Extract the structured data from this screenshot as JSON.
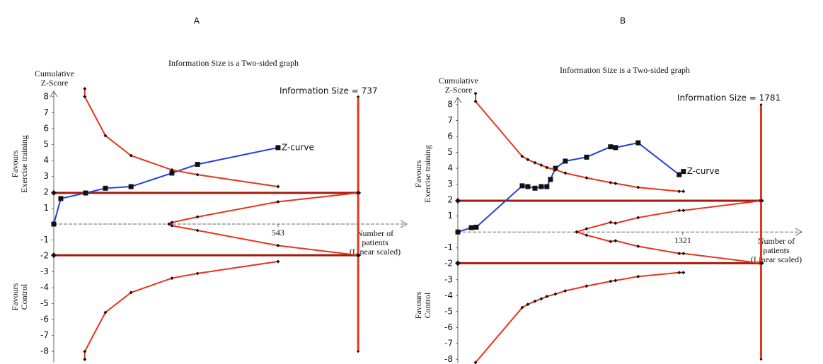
{
  "chart_data": [
    {
      "type": "line",
      "panel": "A",
      "title": "Information Size is a Two-sided graph",
      "y_label": [
        "Cumulative",
        "Z-Score"
      ],
      "x_label": [
        "Number of",
        "patients",
        "(Linear scaled)"
      ],
      "favours_upper": [
        "Favours",
        "Exercise training"
      ],
      "favours_lower": [
        "Favours",
        "Control"
      ],
      "information_size_label": "Information Size = 737",
      "information_size": 737,
      "information_size_ylim": [
        -8,
        8
      ],
      "boundary": [
        1.96,
        -1.96
      ],
      "boundary_color": "#a51b0b",
      "information_size_color": "#e8341c",
      "xlim": [
        0,
        855
      ],
      "ylim": [
        -8.7,
        8.7
      ],
      "xticks": [
        543
      ],
      "yticks": [
        -8,
        -7,
        -6,
        -5,
        -4,
        -3,
        -2,
        -1,
        1,
        2,
        3,
        4,
        5,
        6,
        7,
        8
      ],
      "series": [
        {
          "name": "Z-curve",
          "color": "#1f3fdf",
          "marker": "square",
          "x": [
            0,
            17,
            77,
            125,
            187,
            286,
            348,
            543
          ],
          "values": [
            0,
            1.6,
            1.95,
            2.25,
            2.35,
            3.2,
            3.75,
            4.8
          ]
        },
        {
          "color": "#e8341c",
          "marker": "diamond",
          "x": [
            75,
            75,
            125,
            187,
            286,
            348,
            543
          ],
          "values": [
            8.5,
            8.0,
            5.55,
            4.3,
            3.4,
            3.1,
            2.35
          ]
        },
        {
          "color": "#e8341c",
          "marker": "diamond",
          "x": [
            75,
            75,
            125,
            187,
            286,
            348,
            543
          ],
          "values": [
            -8.5,
            -8.0,
            -5.55,
            -4.3,
            -3.4,
            -3.1,
            -2.35
          ]
        },
        {
          "color": "#e8341c",
          "marker": "diamond",
          "x": [
            279,
            286,
            348,
            543,
            737
          ],
          "values": [
            0,
            0.1,
            0.45,
            1.4,
            1.96
          ]
        },
        {
          "color": "#e8341c",
          "marker": "diamond",
          "x": [
            279,
            286,
            348,
            543,
            737
          ],
          "values": [
            0,
            -0.1,
            -0.4,
            -1.35,
            -1.96
          ]
        }
      ]
    },
    {
      "type": "line",
      "panel": "B",
      "title": "Information Size is a Two-sided graph",
      "y_label": [
        "Cumulative",
        "Z-Score"
      ],
      "x_label": [
        "Number of",
        "patients",
        "(Linear scaled)"
      ],
      "favours_upper": [
        "Favours",
        "Exercise training"
      ],
      "favours_lower": [
        "Favours",
        "Control"
      ],
      "information_size_label": "Information Size = 1781",
      "information_size": 1781,
      "information_size_ylim": [
        -8,
        8
      ],
      "boundary": [
        1.96,
        -1.96
      ],
      "boundary_color": "#a51b0b",
      "information_size_color": "#e8341c",
      "xlim": [
        0,
        2020
      ],
      "ylim": [
        -8.25,
        8.8
      ],
      "xticks": [
        1321
      ],
      "yticks": [
        -8,
        -7,
        -6,
        -5,
        -4,
        -3,
        -2,
        -1,
        1,
        2,
        3,
        4,
        5,
        6,
        7,
        8
      ],
      "series": [
        {
          "name": "Z-curve",
          "color": "#1f3fdf",
          "marker": "square",
          "x": [
            0,
            79,
            108,
            378,
            411,
            453,
            490,
            523,
            544,
            573,
            631,
            756,
            897,
            926,
            1059,
            1300,
            1325
          ],
          "values": [
            0,
            0.27,
            0.3,
            2.9,
            2.85,
            2.75,
            2.85,
            2.85,
            3.3,
            4.0,
            4.45,
            4.7,
            5.35,
            5.3,
            5.6,
            3.6,
            3.8
          ]
        },
        {
          "color": "#e8341c",
          "marker": "diamond",
          "x": [
            104,
            104,
            378,
            411,
            453,
            490,
            523,
            573,
            631,
            756,
            897,
            926,
            1059,
            1300,
            1325
          ],
          "values": [
            8.7,
            8.2,
            4.75,
            4.55,
            4.35,
            4.2,
            4.05,
            3.9,
            3.7,
            3.4,
            3.1,
            3.05,
            2.8,
            2.55,
            2.55
          ]
        },
        {
          "color": "#e8341c",
          "marker": "diamond",
          "x": [
            104,
            104,
            378,
            411,
            453,
            490,
            523,
            573,
            631,
            756,
            897,
            926,
            1059,
            1300,
            1325
          ],
          "values": [
            -8.7,
            -8.2,
            -4.75,
            -4.55,
            -4.35,
            -4.2,
            -4.05,
            -3.9,
            -3.7,
            -3.4,
            -3.1,
            -3.05,
            -2.8,
            -2.55,
            -2.55
          ]
        },
        {
          "color": "#e8341c",
          "marker": "diamond",
          "x": [
            698,
            756,
            897,
            926,
            1059,
            1300,
            1325,
            1781
          ],
          "values": [
            0,
            0.2,
            0.6,
            0.55,
            0.9,
            1.35,
            1.35,
            1.96
          ]
        },
        {
          "color": "#e8341c",
          "marker": "diamond",
          "x": [
            698,
            756,
            897,
            926,
            1059,
            1300,
            1325,
            1781
          ],
          "values": [
            0,
            -0.2,
            -0.6,
            -0.55,
            -0.9,
            -1.35,
            -1.35,
            -1.96
          ]
        }
      ]
    }
  ]
}
